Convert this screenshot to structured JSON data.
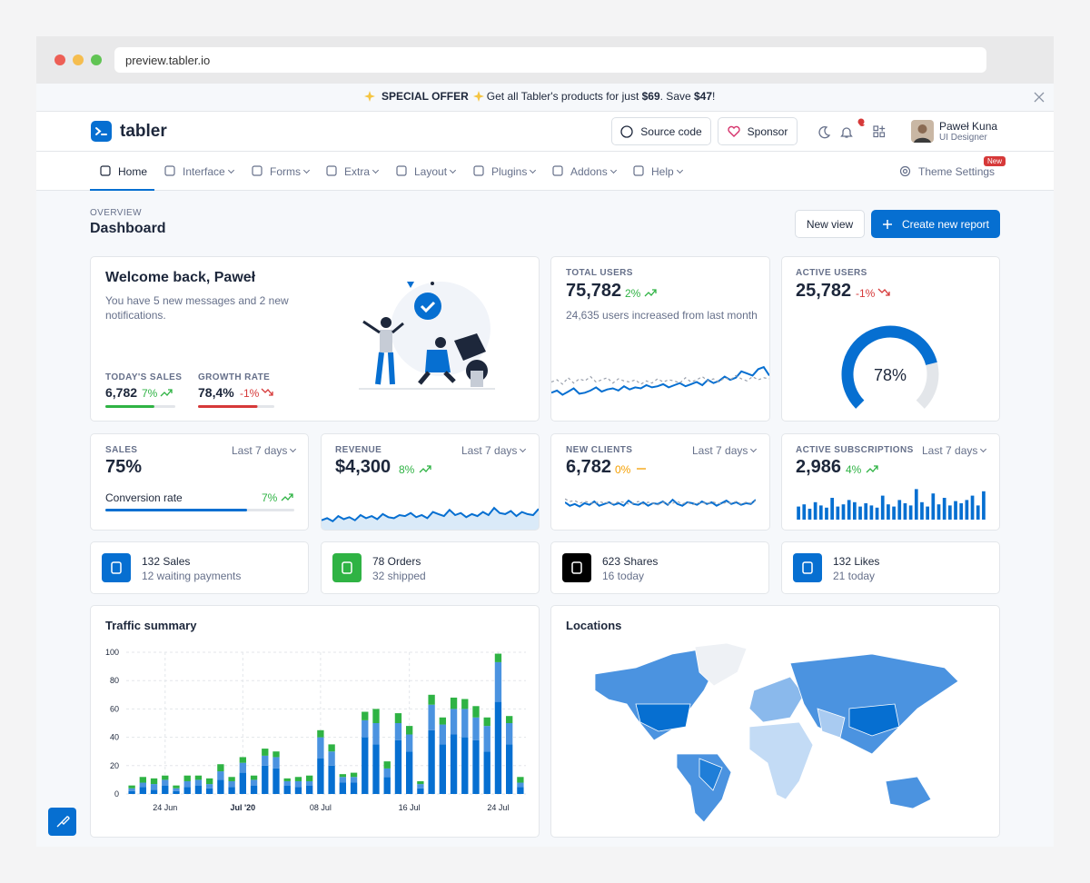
{
  "browser": {
    "url": "preview.tabler.io"
  },
  "banner": {
    "offer": "SPECIAL OFFER",
    "message": [
      "Get all Tabler's products for just ",
      "$69",
      ". Save ",
      "$47",
      "!"
    ]
  },
  "header": {
    "brand": "tabler",
    "source_code": "Source code",
    "sponsor": "Sponsor",
    "user_name": "Paweł Kuna",
    "user_role": "UI Designer"
  },
  "nav": {
    "items": [
      "Home",
      "Interface",
      "Forms",
      "Extra",
      "Layout",
      "Plugins",
      "Addons",
      "Help"
    ],
    "theme_settings": "Theme Settings",
    "badge": "New"
  },
  "page": {
    "pretitle": "OVERVIEW",
    "title": "Dashboard",
    "new_view": "New view",
    "create_report": "Create new report"
  },
  "welcome": {
    "title": "Welcome back, Paweł",
    "text": "You have 5 new messages and 2 new notifications.",
    "todays_sales": {
      "label": "TODAY'S SALES",
      "value": "6,782",
      "change": "7%",
      "progress": 70,
      "color": "#2fb344"
    },
    "growth_rate": {
      "label": "GROWTH RATE",
      "value": "78,4%",
      "change": "-1%",
      "progress": 78,
      "color": "#d63939"
    }
  },
  "total_users": {
    "label": "TOTAL USERS",
    "value": "75,782",
    "change": "2%",
    "text": "24,635 users increased from last month",
    "chart": {
      "type": "line",
      "ylim": [
        0,
        40
      ],
      "series": [
        {
          "color": "#066fd1",
          "dashed": false,
          "values": [
            10,
            12,
            8,
            11,
            14,
            9,
            10,
            12,
            15,
            11,
            13,
            14,
            12,
            16,
            13,
            15,
            14,
            17,
            15,
            16,
            18,
            15,
            17,
            19,
            16,
            18,
            20,
            17,
            22,
            19,
            21,
            25,
            22,
            24,
            30,
            28,
            26,
            32,
            34,
            26
          ]
        },
        {
          "color": "#9aa0ac",
          "dashed": true,
          "values": [
            20,
            22,
            18,
            24,
            19,
            23,
            21,
            25,
            20,
            22,
            24,
            19,
            23,
            21,
            20,
            22,
            18,
            21,
            19,
            23,
            20,
            22,
            21,
            19,
            24,
            20,
            22,
            25,
            21,
            23,
            20,
            24,
            22,
            26,
            23,
            21,
            25,
            22,
            24,
            23
          ]
        }
      ]
    }
  },
  "active_users": {
    "label": "ACTIVE USERS",
    "value": "25,782",
    "change": "-1%",
    "gauge": {
      "value": 78,
      "label": "78%",
      "color": "#066fd1"
    }
  },
  "sales": {
    "label": "SALES",
    "period": "Last 7 days",
    "value": "75%",
    "caption": "Conversion rate",
    "change": "7%",
    "progress": 75,
    "color": "#066fd1"
  },
  "revenue": {
    "label": "REVENUE",
    "period": "Last 7 days",
    "value": "$4,300",
    "change": "8%",
    "chart": {
      "type": "area",
      "ylim": [
        0,
        30
      ],
      "series": [
        {
          "color": "#066fd1",
          "values": [
            10,
            12,
            9,
            14,
            11,
            13,
            10,
            15,
            12,
            14,
            11,
            16,
            13,
            12,
            15,
            14,
            17,
            13,
            15,
            12,
            18,
            16,
            14,
            20,
            15,
            17,
            13,
            16,
            14,
            18,
            15,
            22,
            17,
            16,
            19,
            14,
            18,
            16,
            15,
            21
          ]
        }
      ]
    }
  },
  "new_clients": {
    "label": "NEW CLIENTS",
    "period": "Last 7 days",
    "value": "6,782",
    "change": "0%",
    "chart": {
      "type": "line",
      "ylim": [
        0,
        30
      ],
      "series": [
        {
          "color": "#066fd1",
          "dashed": false,
          "values": [
            14,
            10,
            12,
            9,
            13,
            11,
            15,
            10,
            12,
            14,
            11,
            13,
            10,
            16,
            12,
            11,
            14,
            10,
            13,
            12,
            15,
            11,
            17,
            12,
            10,
            14,
            13,
            11,
            15,
            12,
            14,
            10,
            13,
            16,
            12,
            14,
            11,
            13,
            12,
            17
          ]
        },
        {
          "color": "#9aa0ac",
          "dashed": true,
          "values": [
            18,
            15,
            16,
            13,
            15,
            14,
            12,
            15,
            13,
            14,
            12,
            15,
            14,
            12,
            13,
            15,
            12,
            14,
            13,
            11,
            14,
            12,
            13,
            15,
            12,
            14,
            11,
            13,
            14,
            12,
            15,
            13,
            12,
            14,
            13,
            15,
            12,
            14,
            13,
            16
          ]
        }
      ]
    }
  },
  "active_subscriptions": {
    "label": "ACTIVE SUBSCRIPTIONS",
    "period": "Last 7 days",
    "value": "2,986",
    "change": "4%",
    "chart": {
      "type": "bar",
      "ylim": [
        0,
        30
      ],
      "color": "#066fd1",
      "values": [
        12,
        14,
        10,
        16,
        13,
        11,
        20,
        12,
        14,
        18,
        16,
        12,
        15,
        13,
        11,
        22,
        14,
        12,
        18,
        15,
        13,
        28,
        16,
        12,
        24,
        14,
        20,
        13,
        17,
        15,
        18,
        22,
        13,
        26
      ]
    }
  },
  "stats": [
    {
      "title": "132 Sales",
      "subtitle": "12 waiting payments",
      "color": "#066fd1"
    },
    {
      "title": "78 Orders",
      "subtitle": "32 shipped",
      "color": "#2fb344"
    },
    {
      "title": "623 Shares",
      "subtitle": "16 today",
      "color": "#000000"
    },
    {
      "title": "132 Likes",
      "subtitle": "21 today",
      "color": "#066fd1"
    }
  ],
  "traffic": {
    "title": "Traffic summary",
    "chart": {
      "type": "bar",
      "stacked": true,
      "grid": true,
      "ylim": [
        0,
        100
      ],
      "yticks": [
        0,
        20,
        40,
        60,
        80,
        100
      ],
      "categories": [
        null,
        null,
        null,
        "24 Jun",
        null,
        null,
        null,
        null,
        null,
        null,
        "Jul '20",
        null,
        null,
        null,
        null,
        null,
        null,
        "08 Jul",
        null,
        null,
        null,
        null,
        null,
        null,
        null,
        "16 Jul",
        null,
        null,
        null,
        null,
        null,
        null,
        null,
        "24 Jul",
        null,
        null
      ],
      "series": [
        {
          "color": "#066fd1",
          "values": [
            2,
            5,
            3,
            6,
            2,
            5,
            6,
            4,
            10,
            5,
            15,
            6,
            20,
            18,
            6,
            5,
            6,
            25,
            20,
            8,
            8,
            40,
            35,
            12,
            38,
            30,
            4,
            45,
            35,
            42,
            40,
            38,
            30,
            65,
            35,
            5
          ]
        },
        {
          "color": "#4b93e0",
          "values": [
            2,
            3,
            4,
            4,
            2,
            4,
            4,
            3,
            6,
            4,
            7,
            4,
            7,
            8,
            3,
            4,
            3,
            15,
            10,
            4,
            4,
            12,
            15,
            6,
            12,
            12,
            3,
            18,
            14,
            18,
            20,
            16,
            18,
            28,
            15,
            3
          ]
        },
        {
          "color": "#2fb344",
          "values": [
            2,
            4,
            4,
            3,
            2,
            4,
            3,
            4,
            5,
            3,
            4,
            3,
            5,
            4,
            2,
            3,
            4,
            5,
            5,
            2,
            3,
            6,
            10,
            5,
            7,
            6,
            2,
            7,
            5,
            8,
            7,
            8,
            6,
            6,
            5,
            4
          ]
        }
      ]
    }
  },
  "locations": {
    "title": "Locations"
  }
}
